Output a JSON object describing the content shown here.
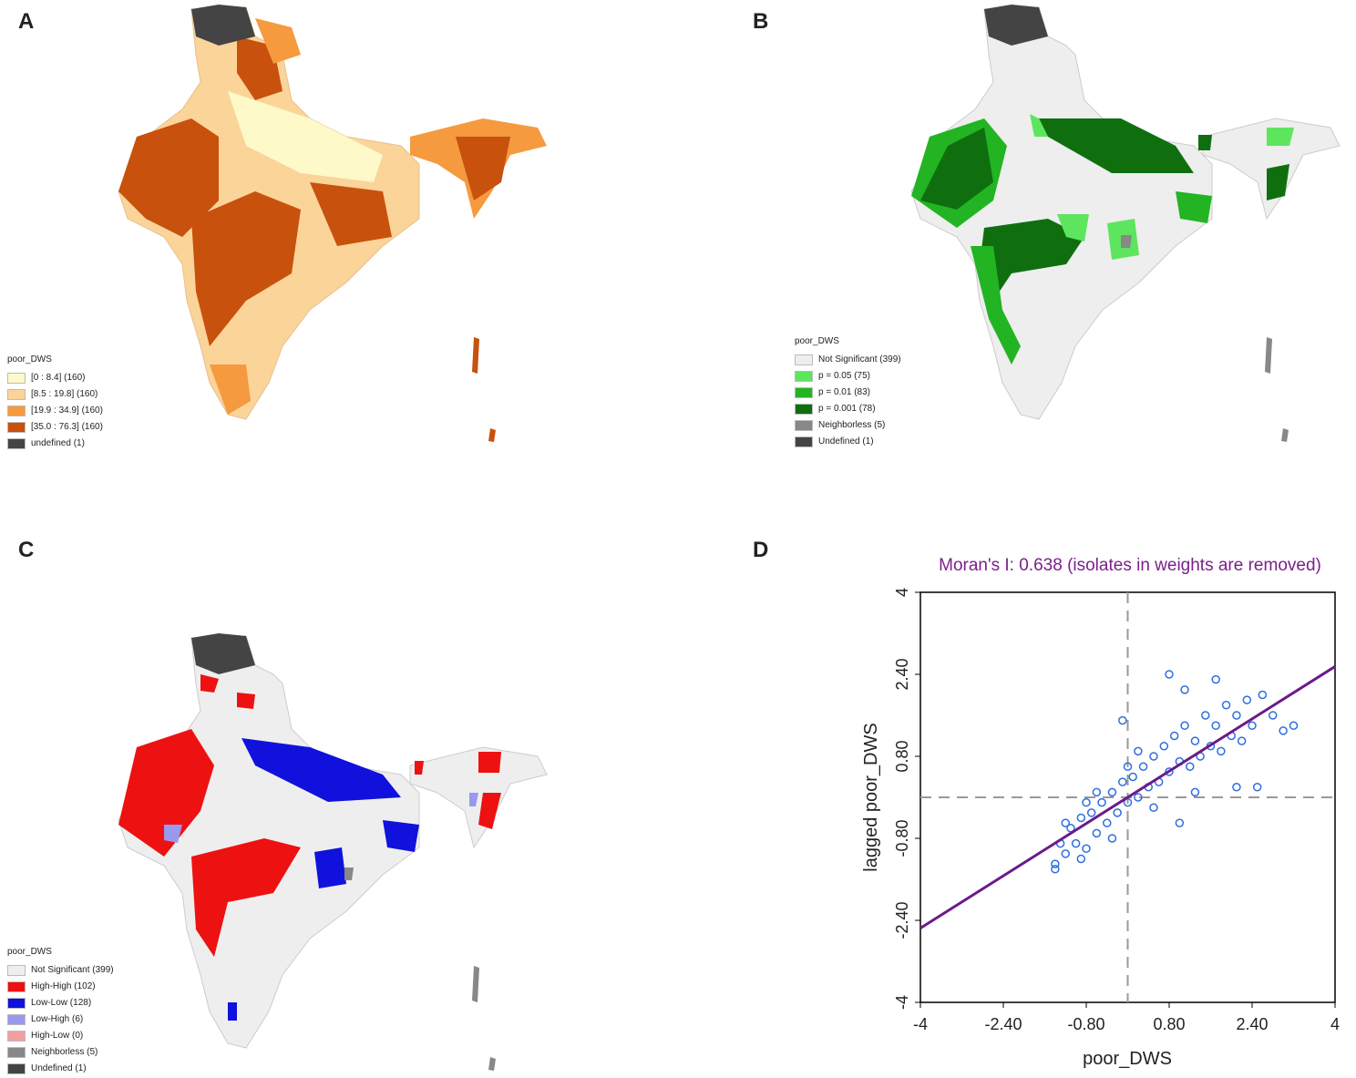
{
  "panels": {
    "a": {
      "letter": "A",
      "legend_title": "poor_DWS",
      "items": [
        {
          "label": "[0 : 8.4] (160)",
          "color": "#fdf9c8"
        },
        {
          "label": "[8.5 : 19.8] (160)",
          "color": "#fbd49a"
        },
        {
          "label": "[19.9 : 34.9] (160)",
          "color": "#f59a3e"
        },
        {
          "label": "[35.0 : 76.3] (160)",
          "color": "#c8510d"
        },
        {
          "label": "undefined (1)",
          "color": "#444444"
        }
      ]
    },
    "b": {
      "letter": "B",
      "legend_title": "poor_DWS",
      "items": [
        {
          "label": "Not Significant (399)",
          "color": "#eeeeee"
        },
        {
          "label": "p = 0.05 (75)",
          "color": "#5ee55e"
        },
        {
          "label": "p = 0.01 (83)",
          "color": "#22b422"
        },
        {
          "label": "p = 0.001 (78)",
          "color": "#0f6f0f"
        },
        {
          "label": "Neighborless (5)",
          "color": "#888888"
        },
        {
          "label": "Undefined (1)",
          "color": "#444444"
        }
      ]
    },
    "c": {
      "letter": "C",
      "legend_title": "poor_DWS",
      "items": [
        {
          "label": "Not Significant (399)",
          "color": "#eeeeee"
        },
        {
          "label": "High-High (102)",
          "color": "#ee1111"
        },
        {
          "label": "Low-Low (128)",
          "color": "#1111dd"
        },
        {
          "label": "Low-High (6)",
          "color": "#9999ee"
        },
        {
          "label": "High-Low (0)",
          "color": "#f0a0a0"
        },
        {
          "label": "Neighborless (5)",
          "color": "#888888"
        },
        {
          "label": "Undefined (1)",
          "color": "#444444"
        }
      ]
    },
    "d": {
      "letter": "D"
    }
  },
  "chart_data": {
    "type": "scatter",
    "title": "Moran's I: 0.638 (isolates in weights are removed)",
    "title_color": "#7b1f8c",
    "xlabel": "poor_DWS",
    "ylabel": "lagged poor_DWS",
    "xlim": [
      -4,
      4
    ],
    "ylim": [
      -4,
      4
    ],
    "xticks": [
      "-4",
      "-2.40",
      "-0.80",
      "0.80",
      "2.40",
      "4"
    ],
    "yticks": [
      "-4",
      "-2.40",
      "-0.80",
      "0.80",
      "2.40",
      "4"
    ],
    "tick_values": [
      -4,
      -2.4,
      -0.8,
      0.8,
      2.4,
      4
    ],
    "slope": 0.638,
    "intercept": 0,
    "point_color": "#2f6fe0",
    "line_color": "#6a1a8a",
    "points": [
      [
        -1.4,
        -1.3
      ],
      [
        -1.3,
        -0.9
      ],
      [
        -1.2,
        -1.1
      ],
      [
        -1.1,
        -0.6
      ],
      [
        -1.0,
        -0.9
      ],
      [
        -0.9,
        -0.4
      ],
      [
        -0.8,
        -1.0
      ],
      [
        -0.7,
        -0.3
      ],
      [
        -0.6,
        -0.7
      ],
      [
        -0.5,
        -0.1
      ],
      [
        -0.4,
        -0.5
      ],
      [
        -0.3,
        0.1
      ],
      [
        -0.2,
        -0.3
      ],
      [
        -0.1,
        0.3
      ],
      [
        0.0,
        -0.1
      ],
      [
        0.1,
        0.4
      ],
      [
        0.2,
        0.0
      ],
      [
        0.3,
        0.6
      ],
      [
        0.4,
        0.2
      ],
      [
        0.5,
        0.8
      ],
      [
        0.6,
        0.3
      ],
      [
        0.7,
        1.0
      ],
      [
        0.8,
        0.5
      ],
      [
        0.9,
        1.2
      ],
      [
        1.0,
        0.7
      ],
      [
        1.1,
        1.4
      ],
      [
        1.2,
        0.6
      ],
      [
        1.3,
        1.1
      ],
      [
        1.4,
        0.8
      ],
      [
        1.5,
        1.6
      ],
      [
        1.6,
        1.0
      ],
      [
        1.7,
        1.4
      ],
      [
        1.8,
        0.9
      ],
      [
        1.9,
        1.8
      ],
      [
        2.0,
        1.2
      ],
      [
        2.1,
        1.6
      ],
      [
        2.2,
        1.1
      ],
      [
        2.3,
        1.9
      ],
      [
        2.4,
        1.4
      ],
      [
        2.6,
        2.0
      ],
      [
        2.8,
        1.6
      ],
      [
        3.0,
        1.3
      ],
      [
        3.2,
        1.4
      ],
      [
        -0.1,
        1.5
      ],
      [
        0.8,
        2.4
      ],
      [
        1.1,
        2.1
      ],
      [
        1.7,
        2.3
      ],
      [
        2.1,
        0.2
      ],
      [
        2.5,
        0.2
      ],
      [
        -1.4,
        -1.4
      ],
      [
        -1.2,
        -0.5
      ],
      [
        -0.9,
        -1.2
      ],
      [
        -0.6,
        0.1
      ],
      [
        -0.3,
        -0.8
      ],
      [
        0.2,
        0.9
      ],
      [
        0.5,
        -0.2
      ],
      [
        1.0,
        -0.5
      ],
      [
        1.3,
        0.1
      ],
      [
        -0.8,
        -0.1
      ],
      [
        0.0,
        0.6
      ]
    ]
  }
}
